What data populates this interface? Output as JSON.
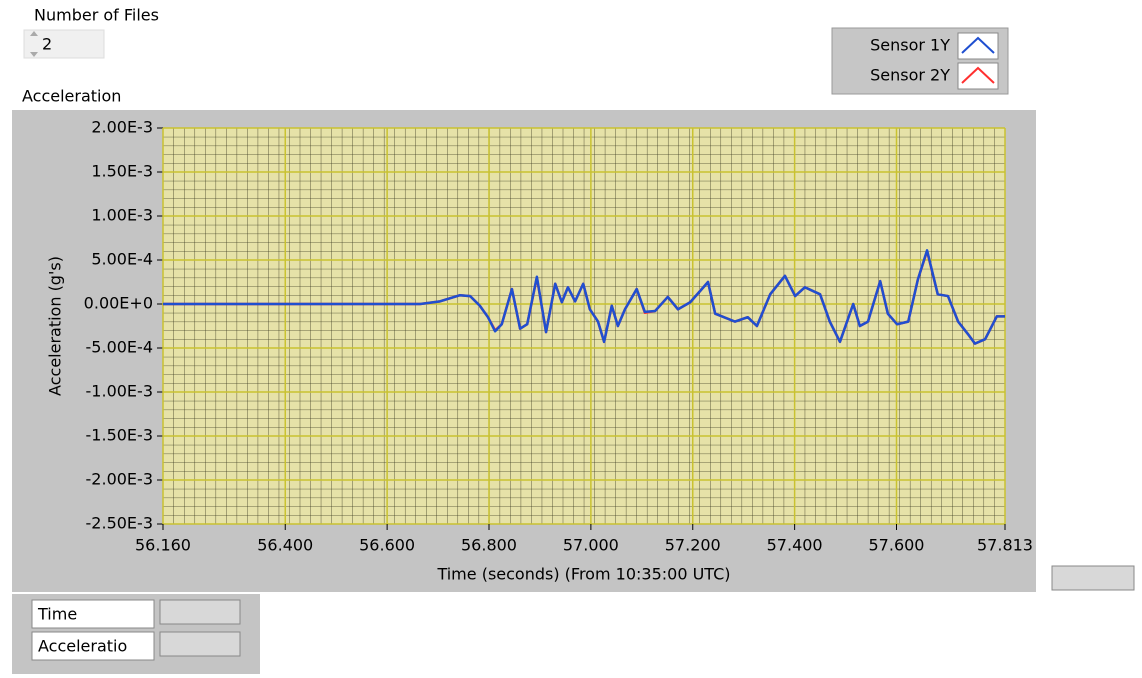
{
  "controls": {
    "files_label": "Number of Files",
    "files_value": 2,
    "graph_label": "Acceleration",
    "scale_legend": [
      "Time",
      "Acceleratio"
    ]
  },
  "chart_data": {
    "type": "line",
    "xlabel": "Time (seconds) (From 10:35:00 UTC)",
    "ylabel": "Acceleration (g's)",
    "x": [
      56.16,
      56.665,
      56.704,
      56.743,
      56.763,
      56.782,
      56.798,
      56.812,
      56.825,
      56.845,
      56.861,
      56.875,
      56.894,
      56.912,
      56.93,
      56.943,
      56.955,
      56.969,
      56.985,
      56.998,
      57.014,
      57.026,
      57.041,
      57.053,
      57.067,
      57.09,
      57.106,
      57.126,
      57.151,
      57.171,
      57.195,
      57.23,
      57.244,
      57.283,
      57.308,
      57.326,
      57.352,
      57.381,
      57.401,
      57.42,
      57.45,
      57.469,
      57.489,
      57.515,
      57.528,
      57.544,
      57.568,
      57.583,
      57.601,
      57.623,
      57.642,
      57.66,
      57.681,
      57.701,
      57.721,
      57.74,
      57.754,
      57.774,
      57.797,
      57.813
    ],
    "series": [
      {
        "name": "Sensor 2Y",
        "color": "#ff3030",
        "values": [
          0,
          0,
          3e-05,
          0.0001,
          9e-05,
          -2e-05,
          -0.00015,
          -0.0003,
          -0.00023,
          0.00017,
          -0.00028,
          -0.00023,
          0.0003,
          -0.00032,
          0.00023,
          2e-05,
          0.00019,
          3e-05,
          0.00023,
          -6e-05,
          -0.0002,
          -0.00043,
          -2e-05,
          -0.00025,
          -6e-05,
          0.00017,
          -0.0001,
          -8e-05,
          8e-05,
          -6e-05,
          2e-05,
          0.00025,
          -0.00011,
          -0.0002,
          -0.00015,
          -0.00025,
          0.00011,
          0.00032,
          9e-05,
          0.00019,
          0.00011,
          -0.0002,
          -0.00043,
          0,
          -0.00025,
          -0.0002,
          0.00026,
          -0.00011,
          -0.00023,
          -0.0002,
          0.00028,
          0.0006,
          0.00011,
          9e-05,
          -0.0002,
          -0.00034,
          -0.00045,
          -0.0004,
          -0.00014,
          -0.00014
        ]
      },
      {
        "name": "Sensor 1Y",
        "color": "#1f4fd0",
        "values": [
          0,
          0,
          3e-05,
          0.0001,
          9e-05,
          -2e-05,
          -0.00015,
          -0.00031,
          -0.00023,
          0.00017,
          -0.00028,
          -0.00023,
          0.00031,
          -0.00032,
          0.00023,
          2e-05,
          0.00019,
          3e-05,
          0.00023,
          -6e-05,
          -0.0002,
          -0.00043,
          -2e-05,
          -0.00025,
          -6e-05,
          0.00017,
          -9e-05,
          -8e-05,
          8e-05,
          -6e-05,
          2e-05,
          0.00025,
          -0.00011,
          -0.0002,
          -0.00015,
          -0.00025,
          0.00011,
          0.00032,
          9e-05,
          0.00019,
          0.00011,
          -0.0002,
          -0.00043,
          0,
          -0.00025,
          -0.0002,
          0.00026,
          -0.00011,
          -0.00023,
          -0.0002,
          0.00028,
          0.00061,
          0.00011,
          9e-05,
          -0.0002,
          -0.00034,
          -0.00045,
          -0.0004,
          -0.00014,
          -0.00014
        ]
      }
    ],
    "xlim": [
      56.16,
      57.813
    ],
    "ylim": [
      -0.0025,
      0.002
    ],
    "xticks": [
      {
        "value": 56.16,
        "label": "56.160"
      },
      {
        "value": 56.4,
        "label": "56.400"
      },
      {
        "value": 56.6,
        "label": "56.600"
      },
      {
        "value": 56.8,
        "label": "56.800"
      },
      {
        "value": 57.0,
        "label": "57.000"
      },
      {
        "value": 57.2,
        "label": "57.200"
      },
      {
        "value": 57.4,
        "label": "57.400"
      },
      {
        "value": 57.6,
        "label": "57.600"
      },
      {
        "value": 57.813,
        "label": "57.813"
      }
    ],
    "yticks": [
      {
        "value": 0.002,
        "label": "2.00E-3"
      },
      {
        "value": 0.0015,
        "label": "1.50E-3"
      },
      {
        "value": 0.001,
        "label": "1.00E-3"
      },
      {
        "value": 0.0005,
        "label": "5.00E-4"
      },
      {
        "value": 0,
        "label": "0.00E+0"
      },
      {
        "value": -0.0005,
        "label": "-5.00E-4"
      },
      {
        "value": -0.001,
        "label": "-1.00E-3"
      },
      {
        "value": -0.0015,
        "label": "-1.50E-3"
      },
      {
        "value": -0.002,
        "label": "-2.00E-3"
      },
      {
        "value": -0.0025,
        "label": "-2.50E-3"
      }
    ],
    "grid": true
  }
}
